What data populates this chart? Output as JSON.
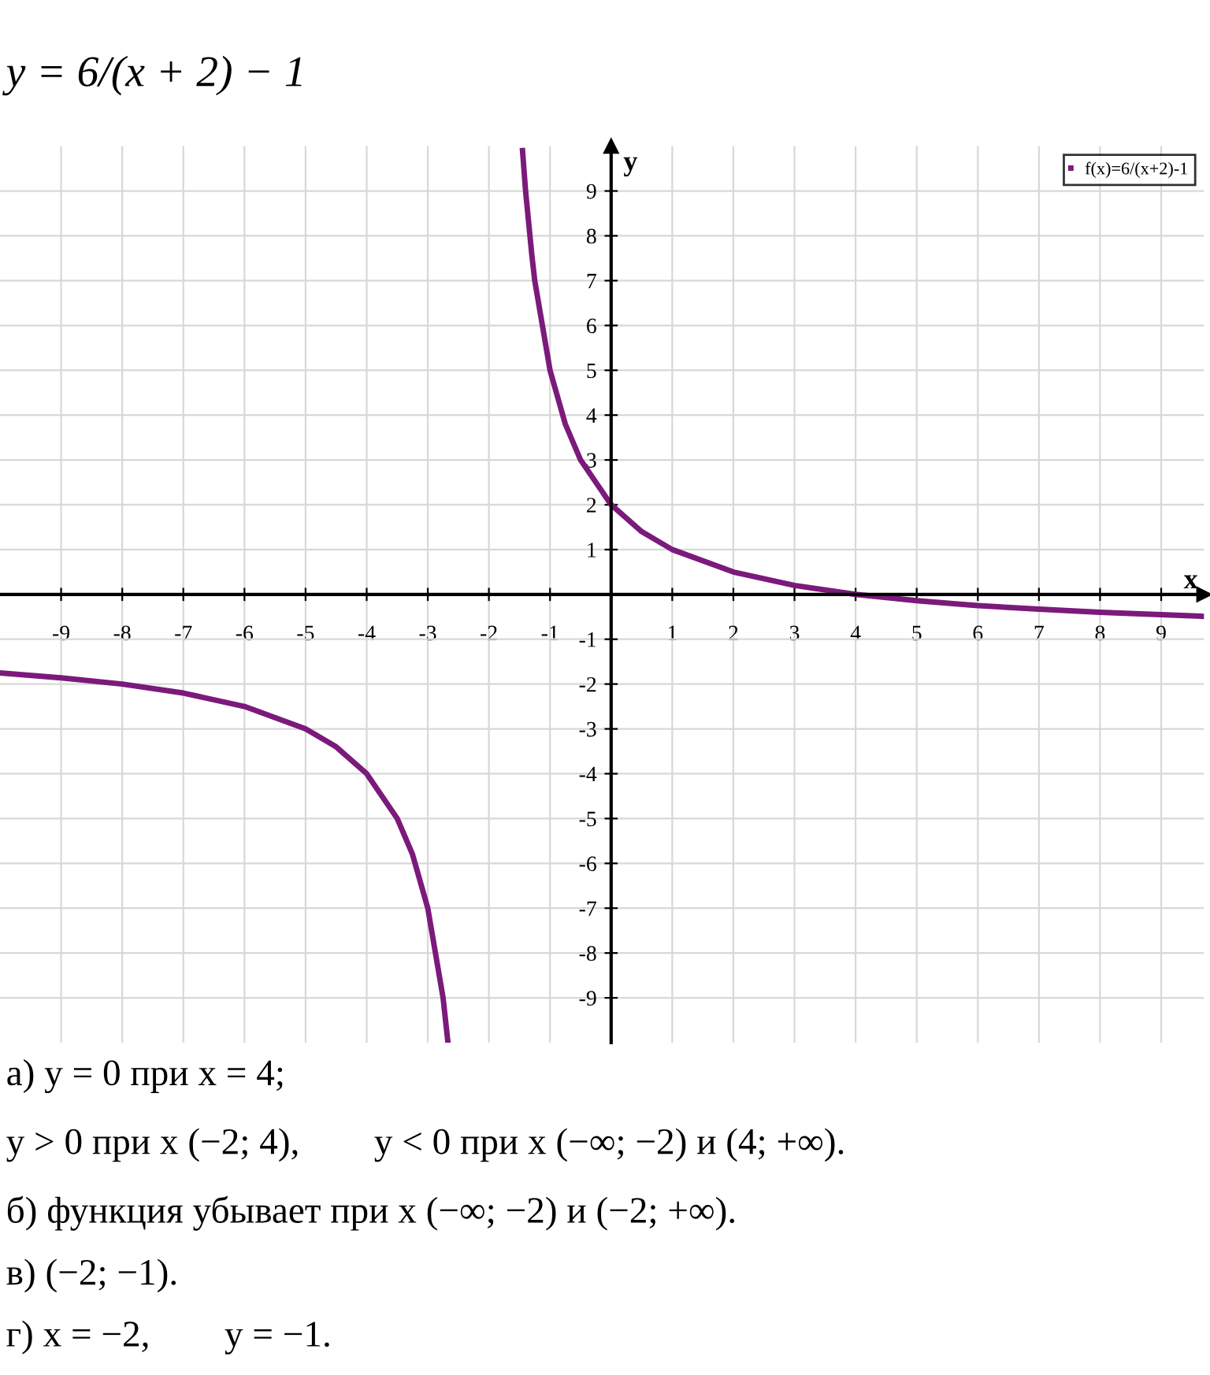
{
  "chart_data": {
    "type": "line",
    "title": "y = 6/(x + 2) − 1",
    "xlabel": "x",
    "ylabel": "y",
    "xlim": [
      -10,
      9.7
    ],
    "ylim": [
      -10,
      10
    ],
    "xticks": [
      -9,
      -8,
      -7,
      -6,
      -5,
      -4,
      -3,
      -2,
      -1,
      1,
      2,
      3,
      4,
      5,
      6,
      7,
      8,
      9
    ],
    "yticks": [
      -9,
      -8,
      -7,
      -6,
      -5,
      -4,
      -3,
      -2,
      -1,
      1,
      2,
      3,
      4,
      5,
      6,
      7,
      8,
      9
    ],
    "grid": true,
    "legend": "top right",
    "line_style": "solid",
    "series": [
      {
        "name": "f(x)=6/(x+2)-1",
        "color": "#7b1a7b",
        "x": [
          -10,
          -9,
          -8,
          -7,
          -6,
          -5,
          -4.5,
          -4,
          -3.5,
          -3.25,
          -3,
          -2.75,
          -2.67,
          -2,
          -1.45,
          -1.4,
          -1.3,
          -1.25,
          -1,
          -0.75,
          -0.5,
          0,
          0.5,
          1,
          2,
          3,
          4,
          5,
          6,
          7,
          8,
          9,
          9.7
        ],
        "values": [
          -1.75,
          -1.86,
          -2,
          -2.2,
          -2.5,
          -3,
          -3.4,
          -4,
          -5,
          -5.8,
          -7,
          -9,
          -10,
          null,
          9.9,
          9,
          7.6,
          7,
          5,
          3.8,
          3,
          2,
          1.4,
          1,
          0.5,
          0.2,
          0,
          -0.14,
          -0.25,
          -0.33,
          -0.4,
          -0.45,
          -0.49
        ]
      }
    ],
    "annotations": [
      "а) y = 0 при x = 4;",
      "y > 0 при x (−2; 4),        y < 0 при x (−∞; −2) и (4; +∞).",
      "б) функция убывает при x (−∞; −2) и (−2; +∞).",
      "в) (−2; −1).",
      "г) x = −2,        y = −1."
    ]
  }
}
